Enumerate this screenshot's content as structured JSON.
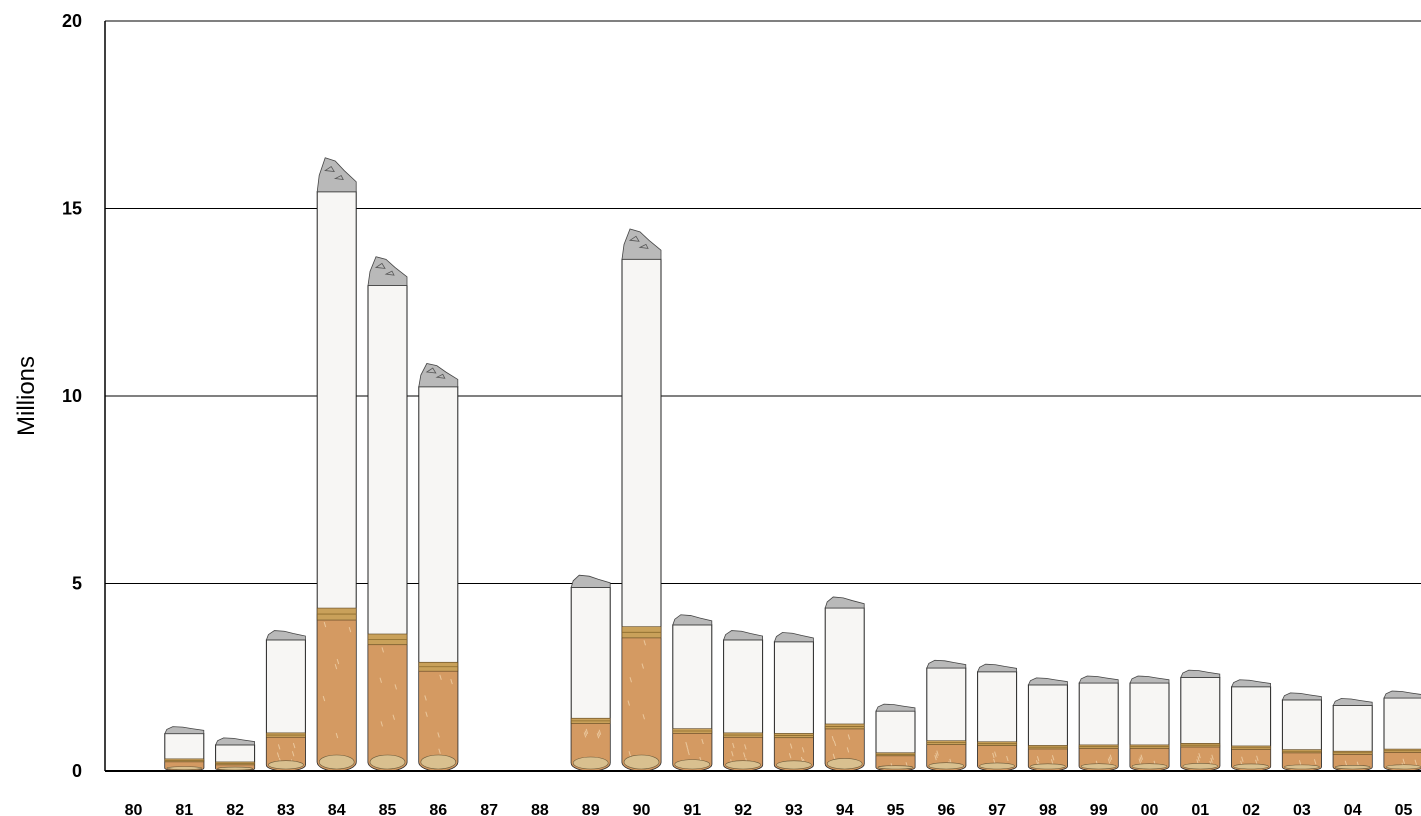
{
  "chart_data": {
    "type": "bar",
    "ylabel": "Millions",
    "ylim": [
      0,
      20
    ],
    "yticks": [
      0,
      5,
      10,
      15,
      20
    ],
    "grid": true,
    "categories": [
      "80",
      "81",
      "82",
      "83",
      "84",
      "85",
      "86",
      "87",
      "88",
      "89",
      "90",
      "91",
      "92",
      "93",
      "94",
      "95",
      "96",
      "97",
      "98",
      "99",
      "00",
      "01",
      "02",
      "03",
      "04",
      "05"
    ],
    "values": [
      null,
      1.05,
      0.75,
      3.55,
      15.5,
      13.0,
      10.3,
      null,
      null,
      4.95,
      13.7,
      3.95,
      3.55,
      3.5,
      4.4,
      1.65,
      2.8,
      2.7,
      2.35,
      2.4,
      2.4,
      2.55,
      2.3,
      1.95,
      1.8,
      2.0
    ],
    "bar_style": "cigarette",
    "colors": {
      "paper": "#f7f6f4",
      "filter": "#d49a62",
      "filter_band": "#c9a15a",
      "ash": "#b9b9b9",
      "gridline": "#000000"
    }
  }
}
